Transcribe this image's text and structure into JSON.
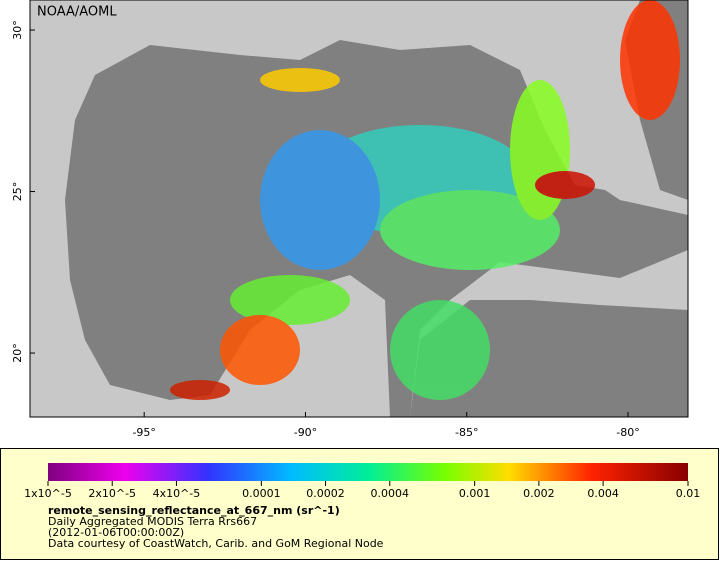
{
  "map": {
    "credit": "NOAA/AOML",
    "xlim": [
      -98.54,
      -78.14
    ],
    "ylim": [
      18.02,
      30.93
    ],
    "xticks": [
      {
        "value": -95,
        "label": "-95°"
      },
      {
        "value": -90,
        "label": "-90°"
      },
      {
        "value": -85,
        "label": "-85°"
      },
      {
        "value": -80,
        "label": "-80°"
      }
    ],
    "yticks": [
      {
        "value": 20,
        "label": "20°"
      },
      {
        "value": 25,
        "label": "25°"
      },
      {
        "value": 30,
        "label": "30°"
      }
    ]
  },
  "colorbar": {
    "scale": "log",
    "lim": [
      1e-05,
      0.01
    ],
    "ticks": [
      {
        "value": 1e-05,
        "label": "1x10^-5"
      },
      {
        "value": 2e-05,
        "label": "2x10^-5"
      },
      {
        "value": 4e-05,
        "label": "4x10^-5"
      },
      0.0001,
      0.0002,
      0.0004,
      0.001,
      0.002,
      0.004,
      0.01
    ]
  },
  "legend": {
    "variable": "remote_sensing_reflectance_at_667_nm (sr^-1)",
    "lines": [
      "Daily Aggregated MODIS Terra Rrs667",
      "(2012-01-06T00:00:00Z)",
      "Data courtesy of CoastWatch, Carib. and GoM Regional Node"
    ]
  }
}
